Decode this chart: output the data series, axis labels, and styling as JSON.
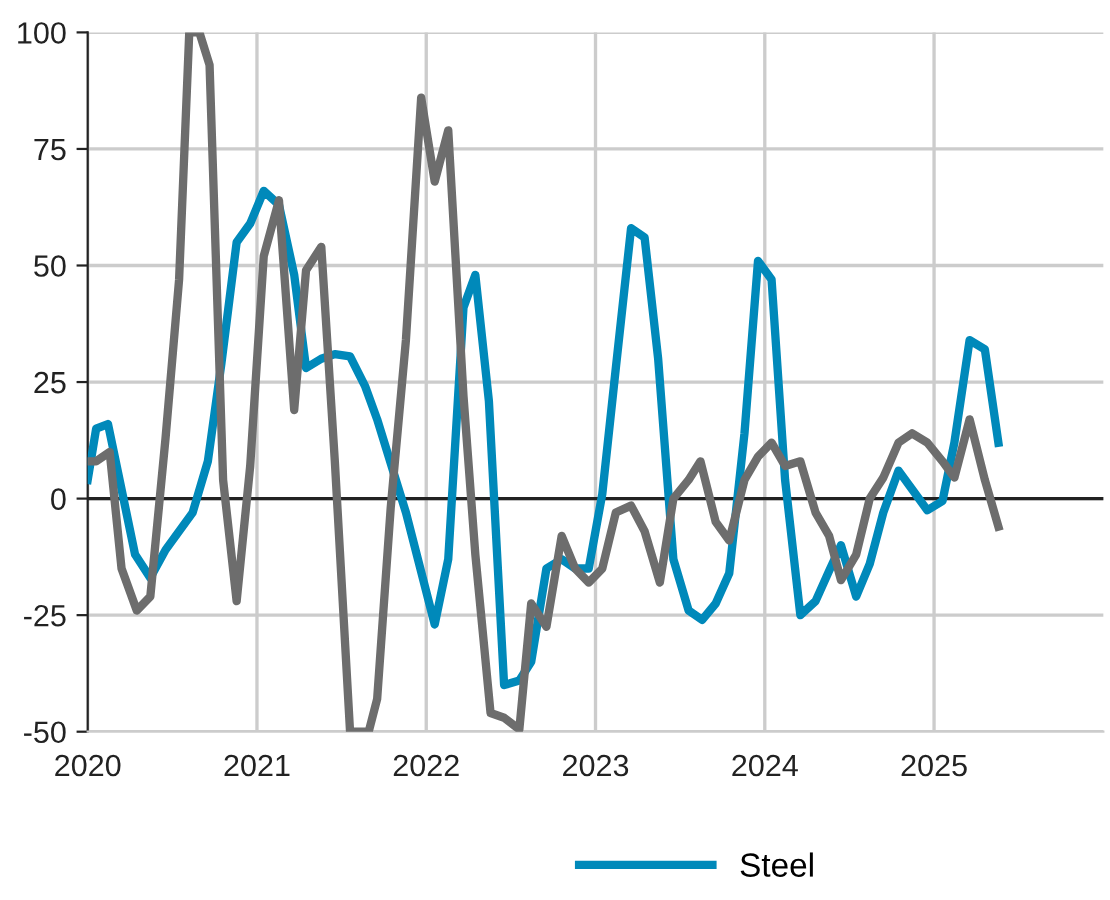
{
  "chart_data": {
    "type": "line",
    "xlim": [
      2020,
      2026
    ],
    "xticks": [
      2020,
      2021,
      2022,
      2023,
      2024,
      2025
    ],
    "ylim": [
      -50,
      100
    ],
    "yticks": [
      -50,
      -25,
      0,
      25,
      50,
      75,
      100
    ],
    "grid": true,
    "legend": "bottom",
    "line_style": "solid",
    "marker": "none",
    "ref_lines": [
      {
        "axis": "y",
        "value": 0,
        "color": "#222222"
      }
    ],
    "series": [
      {
        "name": "Steel",
        "color": "#0089ba",
        "x": [
          2020.0,
          2020.05,
          2020.12,
          2020.28,
          2020.37,
          2020.46,
          2020.62,
          2020.71,
          2020.79,
          2020.88,
          2020.96,
          2021.04,
          2021.13,
          2021.22,
          2021.29,
          2021.38,
          2021.46,
          2021.55,
          2021.64,
          2021.71,
          2021.88,
          2022.05,
          2022.13,
          2022.22,
          2022.29,
          2022.37,
          2022.46,
          2022.55,
          2022.62,
          2022.71,
          2022.8,
          2022.88,
          2022.96,
          2023.04,
          2023.12,
          2023.21,
          2023.29,
          2023.37,
          2023.46,
          2023.55,
          2023.63,
          2023.71,
          2023.79,
          2023.88,
          2023.96,
          2024.04,
          2024.12,
          2024.21,
          2024.3,
          2024.38,
          2024.45,
          2024.54,
          2024.62,
          2024.7,
          2024.79,
          2024.87,
          2024.96,
          2025.05,
          2025.12,
          2025.21,
          2025.3,
          2025.38
        ],
        "values": [
          4,
          15,
          16,
          -12,
          -17,
          -11,
          -3,
          8,
          29,
          55,
          59,
          66,
          63,
          48,
          28,
          30,
          31,
          30.5,
          24,
          17,
          -3,
          -27,
          -13,
          41,
          48,
          21,
          -40,
          -39,
          -35,
          -15,
          -13,
          -15,
          -15,
          1,
          28,
          58,
          56,
          30,
          -13,
          -24,
          -26,
          -22.5,
          -16,
          14,
          51,
          47,
          4,
          -25,
          -22,
          -15.5,
          -10,
          -21,
          -14,
          -3,
          6,
          2,
          -2.5,
          -0.5,
          12,
          34,
          32,
          12
        ]
      },
      {
        "color": "#6d6d6d",
        "x": [
          2020.0,
          2020.05,
          2020.13,
          2020.2,
          2020.29,
          2020.37,
          2020.46,
          2020.54,
          2020.6,
          2020.66,
          2020.72,
          2020.8,
          2020.88,
          2020.96,
          2021.04,
          2021.13,
          2021.22,
          2021.29,
          2021.38,
          2021.46,
          2021.55,
          2021.66,
          2021.71,
          2021.79,
          2021.88,
          2021.97,
          2022.05,
          2022.13,
          2022.22,
          2022.29,
          2022.38,
          2022.46,
          2022.55,
          2022.62,
          2022.71,
          2022.8,
          2022.88,
          2022.96,
          2023.04,
          2023.12,
          2023.21,
          2023.29,
          2023.38,
          2023.46,
          2023.55,
          2023.62,
          2023.71,
          2023.79,
          2023.88,
          2023.96,
          2024.04,
          2024.12,
          2024.21,
          2024.3,
          2024.38,
          2024.45,
          2024.54,
          2024.62,
          2024.7,
          2024.79,
          2024.87,
          2024.96,
          2025.05,
          2025.12,
          2025.21,
          2025.3,
          2025.38
        ],
        "values": [
          8,
          8,
          10,
          -15,
          -24,
          -21,
          13,
          47,
          100,
          100,
          93,
          4,
          -22,
          7,
          52,
          64,
          19,
          49,
          54,
          8,
          -50,
          -50,
          -43,
          -2,
          34,
          86,
          68,
          79,
          22,
          -12,
          -46,
          -47,
          -49.5,
          -22.5,
          -27.5,
          -8,
          -15,
          -18,
          -15,
          -3,
          -1.5,
          -7,
          -18,
          0,
          4,
          8,
          -5,
          -9,
          4,
          9,
          12,
          7,
          8,
          -3,
          -8,
          -17.5,
          -12,
          0,
          4.5,
          12,
          14,
          12,
          8,
          4.5,
          17,
          4,
          -6
        ]
      }
    ]
  }
}
